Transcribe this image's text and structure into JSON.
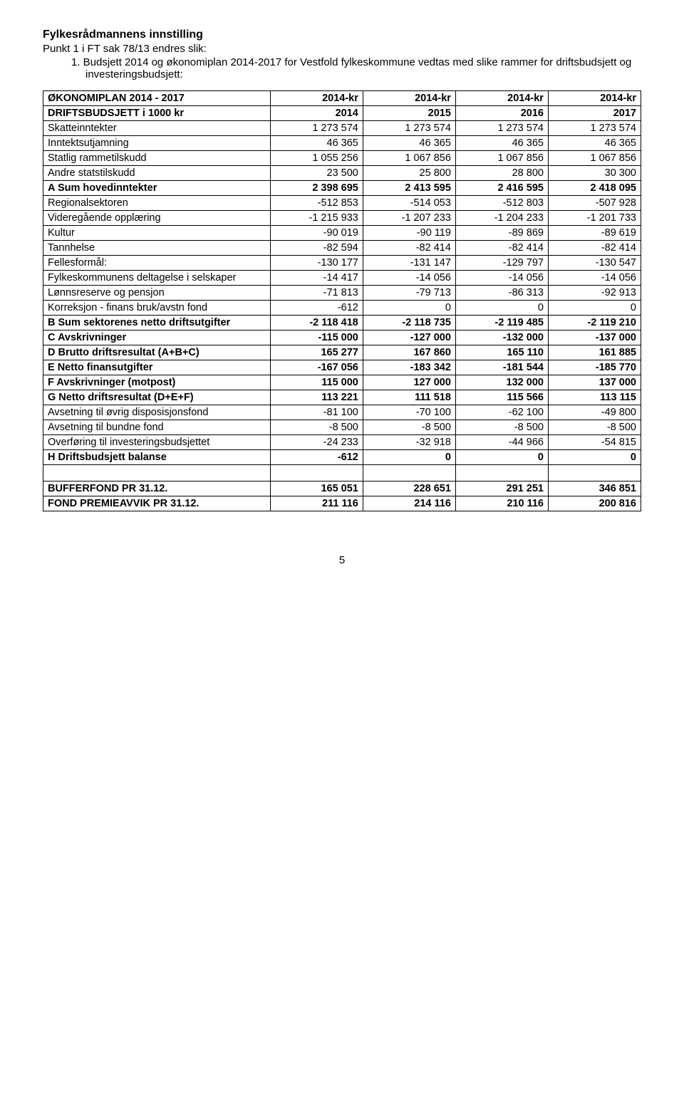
{
  "heading": "Fylkesrådmannens innstilling",
  "sub1": "Punkt 1 i FT sak 78/13 endres slik:",
  "sub2": "1. Budsjett 2014 og økonomiplan 2014-2017 for Vestfold fylkeskommune vedtas med slike rammer for driftsbudsjett og investeringsbudsjett:",
  "table": {
    "header1": {
      "c0": "ØKONOMIPLAN 2014 - 2017",
      "c1": "2014-kr",
      "c2": "2014-kr",
      "c3": "2014-kr",
      "c4": "2014-kr"
    },
    "header2": {
      "c0": "DRIFTSBUDSJETT i 1000 kr",
      "c1": "2014",
      "c2": "2015",
      "c3": "2016",
      "c4": "2017"
    },
    "rows": [
      {
        "bold": false,
        "c0": "Skatteinntekter",
        "c1": "1 273 574",
        "c2": "1 273 574",
        "c3": "1 273 574",
        "c4": "1 273 574"
      },
      {
        "bold": false,
        "c0": "Inntektsutjamning",
        "c1": "46 365",
        "c2": "46 365",
        "c3": "46 365",
        "c4": "46 365"
      },
      {
        "bold": false,
        "c0": "Statlig rammetilskudd",
        "c1": "1 055 256",
        "c2": "1 067 856",
        "c3": "1 067 856",
        "c4": "1 067 856"
      },
      {
        "bold": false,
        "c0": "Andre statstilskudd",
        "c1": "23 500",
        "c2": "25 800",
        "c3": "28 800",
        "c4": "30 300"
      },
      {
        "bold": true,
        "c0": "A Sum hovedinntekter",
        "c1": "2 398 695",
        "c2": "2 413 595",
        "c3": "2 416 595",
        "c4": "2 418 095"
      },
      {
        "bold": false,
        "c0": "Regionalsektoren",
        "c1": "-512 853",
        "c2": "-514 053",
        "c3": "-512 803",
        "c4": "-507 928"
      },
      {
        "bold": false,
        "c0": "Videregående opplæring",
        "c1": "-1 215 933",
        "c2": "-1 207 233",
        "c3": "-1 204 233",
        "c4": "-1 201 733"
      },
      {
        "bold": false,
        "c0": "Kultur",
        "c1": "-90 019",
        "c2": "-90 119",
        "c3": "-89 869",
        "c4": "-89 619"
      },
      {
        "bold": false,
        "c0": "Tannhelse",
        "c1": "-82 594",
        "c2": "-82 414",
        "c3": "-82 414",
        "c4": "-82 414"
      },
      {
        "bold": false,
        "c0": "Fellesformål:",
        "c1": "-130 177",
        "c2": "-131 147",
        "c3": "-129 797",
        "c4": "-130 547"
      },
      {
        "bold": false,
        "c0": "Fylkeskommunens deltagelse i selskaper",
        "c1": "-14 417",
        "c2": "-14 056",
        "c3": "-14 056",
        "c4": "-14 056"
      },
      {
        "bold": false,
        "c0": "Lønnsreserve og pensjon",
        "c1": "-71 813",
        "c2": "-79 713",
        "c3": "-86 313",
        "c4": "-92 913"
      },
      {
        "bold": false,
        "c0": "Korreksjon - finans bruk/avstn fond",
        "c1": "-612",
        "c2": "0",
        "c3": "0",
        "c4": "0"
      },
      {
        "bold": true,
        "c0": "B Sum sektorenes netto driftsutgifter",
        "c1": "-2 118 418",
        "c2": "-2 118 735",
        "c3": "-2 119 485",
        "c4": "-2 119 210"
      },
      {
        "bold": true,
        "c0": "C Avskrivninger",
        "c1": "-115 000",
        "c2": "-127 000",
        "c3": "-132 000",
        "c4": "-137 000"
      },
      {
        "bold": true,
        "c0": "D Brutto driftsresultat (A+B+C)",
        "c1": "165 277",
        "c2": "167 860",
        "c3": "165 110",
        "c4": "161 885"
      },
      {
        "bold": true,
        "c0": "E Netto finansutgifter",
        "c1": "-167 056",
        "c2": "-183 342",
        "c3": "-181 544",
        "c4": "-185 770"
      },
      {
        "bold": true,
        "c0": "F Avskrivninger (motpost)",
        "c1": "115 000",
        "c2": "127 000",
        "c3": "132 000",
        "c4": "137 000"
      },
      {
        "bold": true,
        "c0": "G Netto driftsresultat (D+E+F)",
        "c1": "113 221",
        "c2": "111 518",
        "c3": "115 566",
        "c4": "113 115"
      },
      {
        "bold": false,
        "c0": "Avsetning til øvrig disposisjonsfond",
        "c1": "-81 100",
        "c2": "-70 100",
        "c3": "-62 100",
        "c4": "-49 800"
      },
      {
        "bold": false,
        "c0": "Avsetning til bundne fond",
        "c1": "-8 500",
        "c2": "-8 500",
        "c3": "-8 500",
        "c4": "-8 500"
      },
      {
        "bold": false,
        "c0": "Overføring til investeringsbudsjettet",
        "c1": "-24 233",
        "c2": "-32 918",
        "c3": "-44 966",
        "c4": "-54 815"
      },
      {
        "bold": true,
        "c0": "H Driftsbudsjett balanse",
        "c1": "-612",
        "c2": "0",
        "c3": "0",
        "c4": "0"
      }
    ],
    "footer": [
      {
        "bold": true,
        "c0": "BUFFERFOND PR 31.12.",
        "c1": "165 051",
        "c2": "228 651",
        "c3": "291 251",
        "c4": "346 851"
      },
      {
        "bold": true,
        "c0": "FOND PREMIEAVVIK PR 31.12.",
        "c1": "211 116",
        "c2": "214 116",
        "c3": "210 116",
        "c4": "200 816"
      }
    ]
  },
  "pagenum": "5"
}
